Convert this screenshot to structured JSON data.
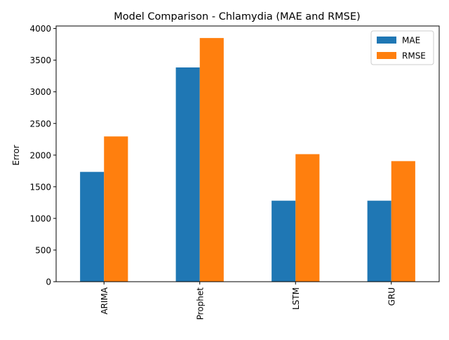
{
  "colors": {
    "mae": "#1f77b4",
    "rmse": "#ff7f0e",
    "axis": "#000000",
    "legend_border": "#cccccc"
  },
  "chart_data": {
    "type": "bar",
    "title": "Model Comparison - Chlamydia (MAE and RMSE)",
    "xlabel": "",
    "ylabel": "Error",
    "categories": [
      "ARIMA",
      "Prophet",
      "LSTM",
      "GRU"
    ],
    "series": [
      {
        "name": "MAE",
        "values": [
          1735,
          3385,
          1280,
          1280
        ]
      },
      {
        "name": "RMSE",
        "values": [
          2295,
          3850,
          2015,
          1905
        ]
      }
    ],
    "ylim": [
      0,
      4040
    ],
    "yticks": [
      0,
      500,
      1000,
      1500,
      2000,
      2500,
      3000,
      3500,
      4000
    ],
    "grid": false,
    "legend_position": "top-right"
  }
}
